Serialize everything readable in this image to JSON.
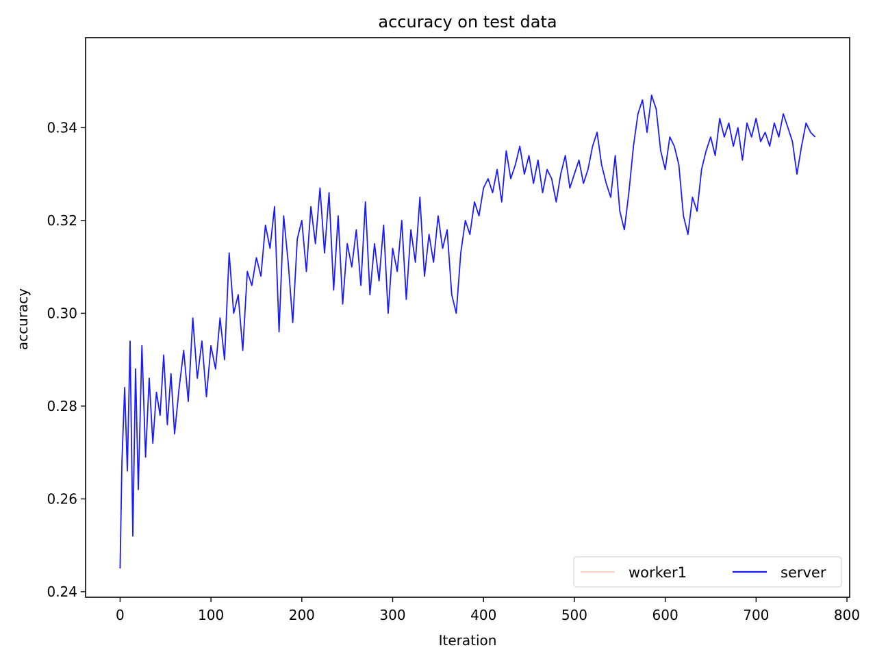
{
  "chart_data": {
    "type": "line",
    "title": "accuracy on test data",
    "xlabel": "Iteration",
    "ylabel": "accuracy",
    "xlim": [
      -38,
      803
    ],
    "ylim": [
      0.2388,
      0.3594
    ],
    "x_ticks": [
      0,
      100,
      200,
      300,
      400,
      500,
      600,
      700,
      800
    ],
    "x_tick_labels": [
      "0",
      "100",
      "200",
      "300",
      "400",
      "500",
      "600",
      "700",
      "800"
    ],
    "y_ticks": [
      0.24,
      0.26,
      0.28,
      0.3,
      0.32,
      0.34
    ],
    "y_tick_labels": [
      "0.24",
      "0.26",
      "0.28",
      "0.30",
      "0.32",
      "0.34"
    ],
    "grid": false,
    "legend_position": "lower-right",
    "legend_columns": 2,
    "series": [
      {
        "name": "worker1",
        "color": "#f4a582",
        "x": [],
        "y": []
      },
      {
        "name": "server",
        "color": "#1a1aff",
        "x": [
          0,
          2,
          5,
          8,
          11,
          14,
          17,
          20,
          24,
          28,
          32,
          36,
          40,
          44,
          48,
          52,
          56,
          60,
          65,
          70,
          75,
          80,
          85,
          90,
          95,
          100,
          105,
          110,
          115,
          120,
          125,
          130,
          135,
          140,
          145,
          150,
          155,
          160,
          165,
          170,
          175,
          180,
          185,
          190,
          195,
          200,
          205,
          210,
          215,
          220,
          225,
          230,
          235,
          240,
          245,
          250,
          255,
          260,
          265,
          270,
          275,
          280,
          285,
          290,
          295,
          300,
          305,
          310,
          315,
          320,
          325,
          330,
          335,
          340,
          345,
          350,
          355,
          360,
          365,
          370,
          375,
          380,
          385,
          390,
          395,
          400,
          405,
          410,
          415,
          420,
          425,
          430,
          435,
          440,
          445,
          450,
          455,
          460,
          465,
          470,
          475,
          480,
          485,
          490,
          495,
          500,
          505,
          510,
          515,
          520,
          525,
          530,
          535,
          540,
          545,
          550,
          555,
          560,
          565,
          570,
          575,
          580,
          585,
          590,
          595,
          600,
          605,
          610,
          615,
          620,
          625,
          630,
          635,
          640,
          645,
          650,
          655,
          660,
          665,
          670,
          675,
          680,
          685,
          690,
          695,
          700,
          705,
          710,
          715,
          720,
          725,
          730,
          735,
          740,
          745,
          750,
          755,
          760,
          765
        ],
        "y": [
          0.245,
          0.268,
          0.284,
          0.266,
          0.294,
          0.252,
          0.288,
          0.262,
          0.293,
          0.269,
          0.286,
          0.272,
          0.283,
          0.278,
          0.291,
          0.276,
          0.287,
          0.274,
          0.284,
          0.292,
          0.281,
          0.299,
          0.286,
          0.294,
          0.282,
          0.293,
          0.288,
          0.299,
          0.29,
          0.313,
          0.3,
          0.304,
          0.292,
          0.309,
          0.306,
          0.312,
          0.308,
          0.319,
          0.314,
          0.323,
          0.296,
          0.321,
          0.311,
          0.298,
          0.316,
          0.32,
          0.309,
          0.323,
          0.315,
          0.327,
          0.313,
          0.326,
          0.305,
          0.321,
          0.302,
          0.315,
          0.31,
          0.318,
          0.306,
          0.324,
          0.304,
          0.315,
          0.307,
          0.319,
          0.3,
          0.314,
          0.309,
          0.32,
          0.303,
          0.318,
          0.311,
          0.325,
          0.308,
          0.317,
          0.311,
          0.321,
          0.314,
          0.318,
          0.304,
          0.3,
          0.313,
          0.32,
          0.317,
          0.324,
          0.321,
          0.327,
          0.329,
          0.326,
          0.331,
          0.324,
          0.335,
          0.329,
          0.332,
          0.336,
          0.33,
          0.334,
          0.328,
          0.333,
          0.326,
          0.331,
          0.329,
          0.324,
          0.33,
          0.334,
          0.327,
          0.33,
          0.333,
          0.328,
          0.331,
          0.336,
          0.339,
          0.332,
          0.328,
          0.325,
          0.334,
          0.322,
          0.318,
          0.326,
          0.336,
          0.343,
          0.346,
          0.339,
          0.347,
          0.344,
          0.335,
          0.331,
          0.338,
          0.336,
          0.332,
          0.321,
          0.317,
          0.325,
          0.322,
          0.331,
          0.335,
          0.338,
          0.334,
          0.342,
          0.338,
          0.341,
          0.336,
          0.34,
          0.333,
          0.341,
          0.338,
          0.342,
          0.337,
          0.339,
          0.336,
          0.341,
          0.338,
          0.343,
          0.34,
          0.337,
          0.33,
          0.336,
          0.341,
          0.339,
          0.338
        ]
      }
    ]
  }
}
